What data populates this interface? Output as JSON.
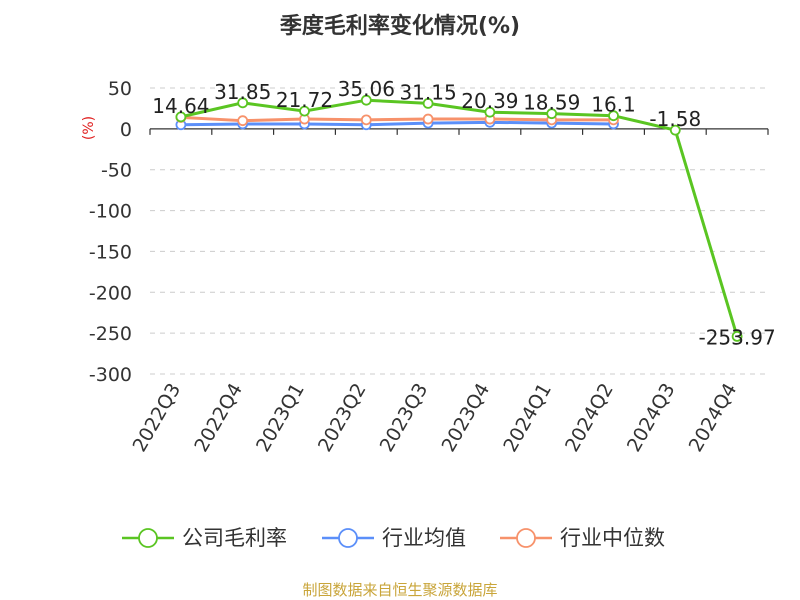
{
  "chart_data": {
    "type": "line",
    "title": "季度毛利率变化情况(%)",
    "ylabel": "(%)",
    "xlabel": "",
    "categories": [
      "2022Q3",
      "2022Q4",
      "2023Q1",
      "2023Q2",
      "2023Q3",
      "2023Q4",
      "2024Q1",
      "2024Q2",
      "2024Q3",
      "2024Q4"
    ],
    "ylim": [
      -300,
      50
    ],
    "yticks": [
      50,
      0,
      -50,
      -100,
      -150,
      -200,
      -250,
      -300
    ],
    "grid": true,
    "legend_position": "bottom",
    "series": [
      {
        "name": "公司毛利率",
        "color": "#5ac522",
        "values": [
          14.64,
          31.85,
          21.72,
          35.06,
          31.15,
          20.39,
          18.59,
          16.1,
          -1.58,
          -253.97
        ],
        "labels": [
          "14.64",
          "31.85",
          "21.72",
          "35.06",
          "31.15",
          "20.39",
          "18.59",
          "16.1",
          "-1.58",
          "-253.97"
        ]
      },
      {
        "name": "行业均值",
        "color": "#5b8ff9",
        "values": [
          5,
          6,
          6,
          5,
          7,
          8,
          7,
          6,
          null,
          null
        ]
      },
      {
        "name": "行业中位数",
        "color": "#f7926b",
        "values": [
          14,
          10,
          12,
          11,
          12,
          12,
          11,
          11,
          null,
          null
        ]
      }
    ]
  },
  "source": "制图数据来自恒生聚源数据库"
}
